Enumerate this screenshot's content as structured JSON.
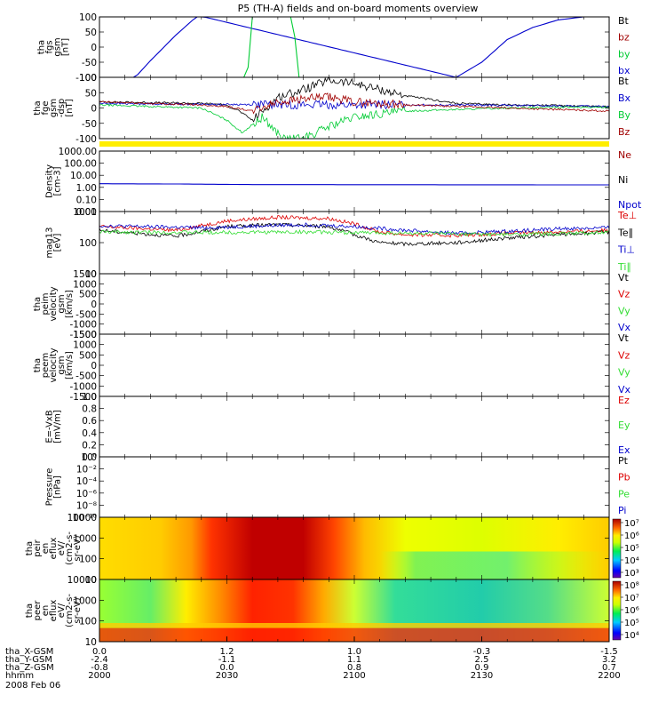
{
  "title": "P5 (TH-A) fields and on-board moments overview",
  "colors": {
    "black": "#000000",
    "red": "#a00000",
    "green": "#00cc33",
    "blue": "#0000cc",
    "lime": "#33dd33",
    "brightred": "#dd0000",
    "yellowbar": "#ffee00"
  },
  "panels": [
    {
      "id": "fgs",
      "ylabel": [
        "tha",
        "fgs",
        "gsm",
        "[nT]"
      ],
      "ticks": [
        "100",
        "50",
        "0",
        "-50",
        "-100"
      ],
      "legend": [
        {
          "text": "Bt",
          "color": "#000000"
        },
        {
          "text": "bz",
          "color": "#a00000"
        },
        {
          "text": "by",
          "color": "#00cc33"
        },
        {
          "text": "bx",
          "color": "#0000cc"
        }
      ]
    },
    {
      "id": "fge",
      "ylabel": [
        "tha",
        "fge",
        "gsm",
        "-dsp",
        "[nT]"
      ],
      "ticks": [
        "100",
        "50",
        "0",
        "-50",
        "-100"
      ],
      "legend": [
        {
          "text": "Bt",
          "color": "#000000"
        },
        {
          "text": "Bx",
          "color": "#0000cc"
        },
        {
          "text": "By",
          "color": "#00cc33"
        },
        {
          "text": "Bz",
          "color": "#a00000"
        }
      ]
    },
    {
      "id": "density",
      "ylabel": [
        "Density",
        "[cm-3]"
      ],
      "ticks": [
        "1000.00",
        "100.00",
        "10.00",
        "1.00",
        "0.10",
        "0.01"
      ],
      "legend": [
        {
          "text": "Ne",
          "color": "#a00000"
        },
        {
          "text": "Ni",
          "color": "#000000"
        },
        {
          "text": "Npot",
          "color": "#0000cc"
        }
      ]
    },
    {
      "id": "temp",
      "ylabel": [
        "mag13",
        "[eV]"
      ],
      "ticks": [
        "1000",
        "100",
        "10"
      ],
      "legend": [
        {
          "text": "Te⊥",
          "color": "#dd0000"
        },
        {
          "text": "Te∥",
          "color": "#000000"
        },
        {
          "text": "Ti⊥",
          "color": "#0000cc"
        },
        {
          "text": "Ti∥",
          "color": "#33dd33"
        }
      ]
    },
    {
      "id": "peim",
      "ylabel": [
        "tha",
        "peim",
        "velocity",
        "gsm",
        "[km/s]"
      ],
      "ticks": [
        "1500",
        "1000",
        "500",
        "0",
        "-500",
        "-1000",
        "-1500"
      ],
      "legend": [
        {
          "text": "Vt",
          "color": "#000000"
        },
        {
          "text": "Vz",
          "color": "#dd0000"
        },
        {
          "text": "Vy",
          "color": "#33dd33"
        },
        {
          "text": "Vx",
          "color": "#0000cc"
        }
      ]
    },
    {
      "id": "peem",
      "ylabel": [
        "tha",
        "peem",
        "velocity",
        "gsm",
        "[km/s]"
      ],
      "ticks": [
        "1500",
        "1000",
        "500",
        "0",
        "-500",
        "-1000",
        "-1500"
      ],
      "legend": [
        {
          "text": "Vt",
          "color": "#000000"
        },
        {
          "text": "Vz",
          "color": "#dd0000"
        },
        {
          "text": "Vy",
          "color": "#33dd33"
        },
        {
          "text": "Vx",
          "color": "#0000cc"
        }
      ]
    },
    {
      "id": "efield",
      "ylabel": [
        "E=-VxB",
        "[mV/m]"
      ],
      "ticks": [
        "1.0",
        "0.8",
        "0.6",
        "0.4",
        "0.2",
        "0.0"
      ],
      "legend": [
        {
          "text": "Ez",
          "color": "#dd0000"
        },
        {
          "text": "Ey",
          "color": "#33dd33"
        },
        {
          "text": "Ex",
          "color": "#0000cc"
        }
      ]
    },
    {
      "id": "pressure",
      "ylabel": [
        "Pressure",
        "[nPa]"
      ],
      "ticks": [
        "10⁰",
        "10⁻²",
        "10⁻⁴",
        "10⁻⁶",
        "10⁻⁸",
        "10⁻¹⁰"
      ],
      "legend": [
        {
          "text": "Pt",
          "color": "#000000"
        },
        {
          "text": "Pb",
          "color": "#dd0000"
        },
        {
          "text": "Pe",
          "color": "#33dd33"
        },
        {
          "text": "Pi",
          "color": "#0000cc"
        }
      ]
    },
    {
      "id": "peir",
      "ylabel": [
        "tha",
        "peir",
        "en",
        "eflux",
        "eV/",
        "(cm2-s-",
        "sr-eV)"
      ],
      "ticks": [
        "10000",
        "1000",
        "100",
        "10"
      ],
      "colorbar": [
        "10⁷",
        "10⁶",
        "10⁵",
        "10⁴",
        "10³"
      ]
    },
    {
      "id": "peer",
      "ylabel": [
        "tha",
        "peer",
        "en",
        "eflux",
        "eV/",
        "(cm2-s-",
        "sr-eV)"
      ],
      "ticks": [
        "10000",
        "1000",
        "100",
        "10"
      ],
      "colorbar": [
        "10⁸",
        "10⁷",
        "10⁶",
        "10⁵",
        "10⁴"
      ]
    }
  ],
  "xaxis": {
    "rows": [
      {
        "label": "tha_X-GSM",
        "values": [
          "0.0",
          "1.2",
          "1.0",
          "-0.3",
          "-1.5"
        ]
      },
      {
        "label": "tha_Y-GSM",
        "values": [
          "-2.4",
          "-1.1",
          "1.1",
          "2.5",
          "3.2"
        ]
      },
      {
        "label": "tha_Z-GSM",
        "values": [
          "-0.8",
          "0.0",
          "0.8",
          "0.9",
          "0.7"
        ]
      },
      {
        "label": "hhmm",
        "values": [
          "2000",
          "2030",
          "2100",
          "2130",
          "2200"
        ]
      }
    ],
    "date": "2008 Feb 06"
  },
  "chart_data": {
    "type": "line",
    "title": "P5 (TH-A) fields and on-board moments overview",
    "x": [
      "2000",
      "2030",
      "2100",
      "2130",
      "2200"
    ],
    "xlabel": "hhmm",
    "date": "2008 Feb 06",
    "panels": [
      {
        "name": "tha fgs gsm",
        "ylim": [
          -100,
          100
        ],
        "series": [
          {
            "name": "bx",
            "t": [
              0.07,
              0.1,
              0.15,
              0.19,
              0.205,
              0.7,
              0.75,
              0.8,
              0.85,
              0.9,
              0.95,
              1.0
            ],
            "values": [
              -100,
              -45,
              40,
              100,
              100,
              -100,
              -50,
              25,
              65,
              90,
              100,
              100
            ]
          },
          {
            "name": "by",
            "t": [
              0.29,
              0.3,
              0.38,
              0.39
            ],
            "values": [
              -100,
              100,
              100,
              -100
            ]
          }
        ]
      },
      {
        "name": "tha fge gsm-dsp",
        "ylim": [
          -100,
          100
        ],
        "series": [
          {
            "name": "Bt",
            "t": [
              0,
              0.2,
              0.24,
              0.27,
              0.3,
              0.35,
              0.4,
              0.45,
              0.5,
              0.55,
              0.6,
              0.7,
              0.8,
              0.9,
              1.0
            ],
            "values": [
              20,
              15,
              12,
              -5,
              -40,
              35,
              60,
              90,
              80,
              60,
              40,
              15,
              10,
              8,
              5
            ]
          },
          {
            "name": "Bx",
            "t": [
              0,
              0.2,
              0.5,
              0.7,
              1.0
            ],
            "values": [
              15,
              12,
              10,
              10,
              5
            ]
          },
          {
            "name": "By",
            "t": [
              0,
              0.2,
              0.25,
              0.28,
              0.32,
              0.36,
              0.4,
              0.45,
              0.5,
              0.6,
              0.7,
              0.8,
              0.9,
              1.0
            ],
            "values": [
              10,
              0,
              -40,
              -80,
              -30,
              -100,
              -100,
              -60,
              -30,
              -10,
              -5,
              0,
              2,
              2
            ]
          },
          {
            "name": "Bz",
            "t": [
              0,
              0.2,
              0.25,
              0.3,
              0.35,
              0.4,
              0.45,
              0.5,
              0.6,
              0.7,
              0.8,
              0.9,
              1.0
            ],
            "values": [
              20,
              10,
              5,
              -10,
              20,
              30,
              35,
              20,
              10,
              5,
              0,
              -5,
              -10
            ]
          }
        ]
      },
      {
        "name": "Density",
        "ylim": [
          0.01,
          1000
        ],
        "scale": "log",
        "series": [
          {
            "name": "Npot",
            "t": [
              0,
              0.15,
              0.3,
              1.0
            ],
            "values": [
              2.0,
              1.9,
              1.7,
              1.6
            ]
          }
        ]
      },
      {
        "name": "mag13 temperature",
        "ylim": [
          10,
          1000
        ],
        "scale": "log",
        "series": [
          {
            "name": "Te⊥",
            "t": [
              0,
              0.15,
              0.25,
              0.35,
              0.45,
              0.5,
              0.55,
              0.6,
              0.7,
              0.8,
              0.9,
              1.0
            ],
            "values": [
              330,
              250,
              500,
              650,
              600,
              400,
              220,
              180,
              170,
              200,
              220,
              250
            ]
          },
          {
            "name": "Te∥",
            "t": [
              0,
              0.15,
              0.25,
              0.35,
              0.45,
              0.5,
              0.55,
              0.6,
              0.7,
              0.8,
              0.9,
              1.0
            ],
            "values": [
              250,
              160,
              330,
              380,
              330,
              180,
              100,
              90,
              100,
              140,
              180,
              220
            ]
          },
          {
            "name": "Ti⊥",
            "t": [
              0,
              0.2,
              0.4,
              0.5,
              0.6,
              0.7,
              0.8,
              0.9,
              1.0
            ],
            "values": [
              350,
              300,
              380,
              330,
              250,
              200,
              230,
              280,
              300
            ]
          },
          {
            "name": "Ti∥",
            "t": [
              0,
              0.2,
              0.4,
              0.6,
              0.8,
              1.0
            ],
            "values": [
              220,
              210,
              220,
              200,
              180,
              210
            ]
          }
        ]
      },
      {
        "name": "tha peim velocity gsm",
        "ylim": [
          -1500,
          1500
        ],
        "series": []
      },
      {
        "name": "tha peem velocity gsm",
        "ylim": [
          -1500,
          1500
        ],
        "series": []
      },
      {
        "name": "E=-VxB",
        "ylim": [
          0,
          1
        ],
        "series": []
      },
      {
        "name": "Pressure",
        "ylim": [
          1e-10,
          1
        ],
        "scale": "log",
        "series": []
      },
      {
        "name": "tha peir en eflux",
        "type": "heatmap",
        "ylim": [
          10,
          10000
        ]
      },
      {
        "name": "tha peer en eflux",
        "type": "heatmap",
        "ylim": [
          10,
          10000
        ]
      }
    ]
  }
}
